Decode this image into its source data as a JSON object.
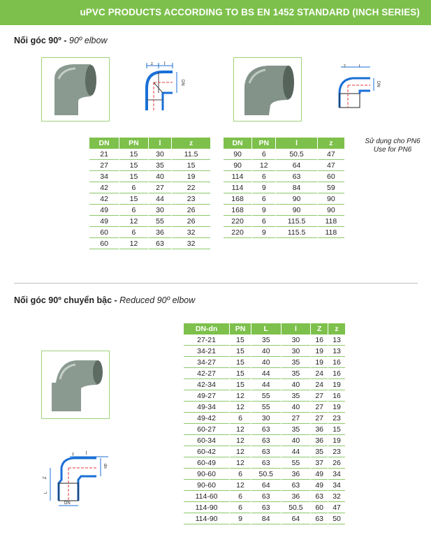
{
  "banner": {
    "title": "uPVC PRODUCTS ACCORDING TO BS EN 1452 STANDARD (INCH SERIES)"
  },
  "colors": {
    "accent": "#7dc04b",
    "diagram_blue": "#1a6fd6",
    "centerline_red": "#e53935"
  },
  "section1": {
    "title_vn": "Nối góc 90º - ",
    "title_en": "90º elbow",
    "note_vn": "Sử dụng cho PN6",
    "note_en": "Use for PN6",
    "diagram_labels": {
      "z": "z",
      "l": "l",
      "dn": "DN"
    },
    "table1": {
      "headers": [
        "DN",
        "PN",
        "l",
        "z"
      ],
      "rows": [
        [
          "21",
          "15",
          "30",
          "11.5"
        ],
        [
          "27",
          "15",
          "35",
          "15"
        ],
        [
          "34",
          "15",
          "40",
          "19"
        ],
        [
          "42",
          "6",
          "27",
          "22"
        ],
        [
          "42",
          "15",
          "44",
          "23"
        ],
        [
          "49",
          "6",
          "30",
          "26"
        ],
        [
          "49",
          "12",
          "55",
          "26"
        ],
        [
          "60",
          "6",
          "36",
          "32"
        ],
        [
          "60",
          "12",
          "63",
          "32"
        ]
      ]
    },
    "table2": {
      "headers": [
        "DN",
        "PN",
        "l",
        "z"
      ],
      "rows": [
        [
          "90",
          "6",
          "50.5",
          "47"
        ],
        [
          "90",
          "12",
          "64",
          "47"
        ],
        [
          "114",
          "6",
          "63",
          "60"
        ],
        [
          "114",
          "9",
          "84",
          "59"
        ],
        [
          "168",
          "6",
          "90",
          "90"
        ],
        [
          "168",
          "9",
          "90",
          "90"
        ],
        [
          "220",
          "6",
          "115.5",
          "118"
        ],
        [
          "220",
          "9",
          "115.5",
          "118"
        ]
      ]
    }
  },
  "section2": {
    "title_vn": "Nối góc 90º chuyển bậc - ",
    "title_en": "Reduced 90º elbow",
    "diagram_labels": {
      "z": "z",
      "l": "l",
      "dn_small": "dn",
      "Z": "Z",
      "L": "L",
      "DN": "DN"
    },
    "table": {
      "headers": [
        "DN-dn",
        "PN",
        "L",
        "l",
        "Z",
        "z"
      ],
      "rows": [
        [
          "27-21",
          "15",
          "35",
          "30",
          "16",
          "13"
        ],
        [
          "34-21",
          "15",
          "40",
          "30",
          "19",
          "13"
        ],
        [
          "34-27",
          "15",
          "40",
          "35",
          "19",
          "16"
        ],
        [
          "42-27",
          "15",
          "44",
          "35",
          "24",
          "16"
        ],
        [
          "42-34",
          "15",
          "44",
          "40",
          "24",
          "19"
        ],
        [
          "49-27",
          "12",
          "55",
          "35",
          "27",
          "16"
        ],
        [
          "49-34",
          "12",
          "55",
          "40",
          "27",
          "19"
        ],
        [
          "49-42",
          "6",
          "30",
          "27",
          "27",
          "23"
        ],
        [
          "60-27",
          "12",
          "63",
          "35",
          "36",
          "15"
        ],
        [
          "60-34",
          "12",
          "63",
          "40",
          "36",
          "19"
        ],
        [
          "60-42",
          "12",
          "63",
          "44",
          "35",
          "23"
        ],
        [
          "60-49",
          "12",
          "63",
          "55",
          "37",
          "26"
        ],
        [
          "90-60",
          "6",
          "50.5",
          "36",
          "49",
          "34"
        ],
        [
          "90-60",
          "12",
          "64",
          "63",
          "49",
          "34"
        ],
        [
          "114-60",
          "6",
          "63",
          "36",
          "63",
          "32"
        ],
        [
          "114-90",
          "6",
          "63",
          "50.5",
          "60",
          "47"
        ],
        [
          "114-90",
          "9",
          "84",
          "64",
          "63",
          "50"
        ]
      ]
    }
  }
}
